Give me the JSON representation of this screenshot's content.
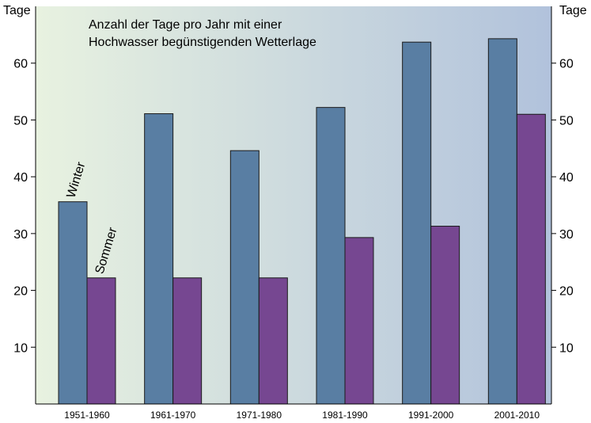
{
  "chart_data": {
    "type": "bar",
    "title_lines": [
      "Anzahl der Tage pro Jahr mit einer",
      "Hochwasser begünstigenden Wetterlage"
    ],
    "ylabel_left": "Tage",
    "ylabel_right": "Tage",
    "categories": [
      "1951-1960",
      "1961-1970",
      "1971-1980",
      "1981-1990",
      "1991-2000",
      "2001-2010"
    ],
    "series": [
      {
        "name": "Winter",
        "color": "#597ea3",
        "values": [
          35.6,
          51.1,
          44.6,
          52.2,
          63.7,
          64.3
        ]
      },
      {
        "name": "Sommer",
        "color": "#764791",
        "values": [
          22.2,
          22.2,
          22.2,
          29.3,
          31.3,
          51.0
        ]
      }
    ],
    "yticks": [
      10,
      20,
      30,
      40,
      50,
      60
    ],
    "ylim": [
      0,
      70
    ],
    "background_gradient": [
      "#e8f2e0",
      "#b1c2dc"
    ]
  }
}
